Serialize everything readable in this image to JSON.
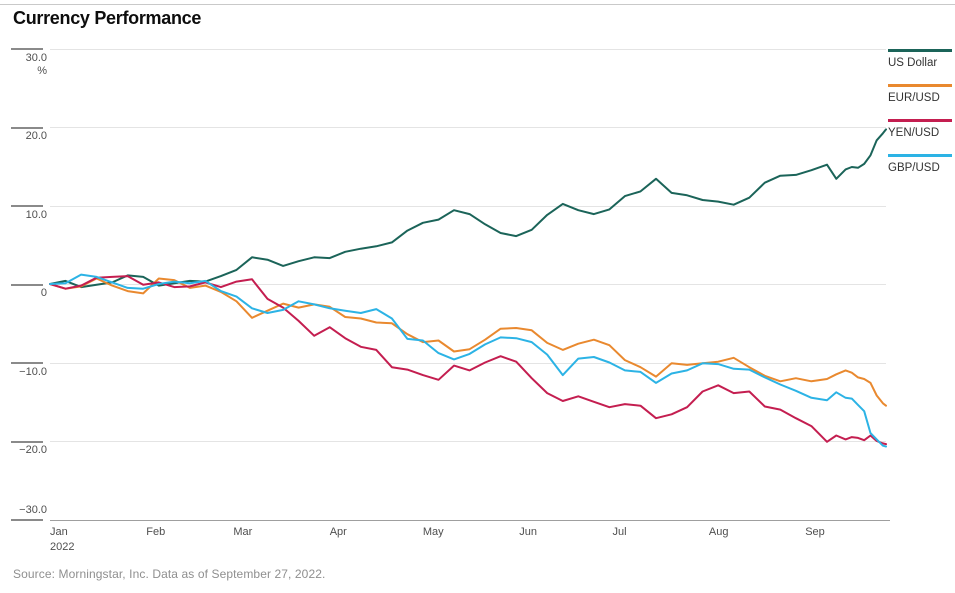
{
  "title": "Currency Performance",
  "source": "Source: Morningstar, Inc. Data as of September 27, 2022.",
  "colors": {
    "us_dollar": "#1b6459",
    "eur_usd": "#e9892f",
    "yen_usd": "#c41e50",
    "gbp_usd": "#2cb3e5",
    "gridline": "#e4e4e4",
    "axis": "#9f9f9f",
    "tick": "#8a8a8a"
  },
  "y_axis": {
    "unit": "%",
    "ticks": [
      {
        "value": 30,
        "label": "30.0"
      },
      {
        "value": 20,
        "label": "20.0"
      },
      {
        "value": 10,
        "label": "10.0"
      },
      {
        "value": 0,
        "label": "0"
      },
      {
        "value": -10,
        "label": "−10.0"
      },
      {
        "value": -20,
        "label": "−20.0"
      },
      {
        "value": -30,
        "label": "−30.0"
      }
    ]
  },
  "chart_data": {
    "type": "line",
    "title": "Currency Performance",
    "ylabel": "%",
    "ylim": [
      -30,
      30
    ],
    "grid": true,
    "legend_position": "right",
    "x_unit": "day of year 2022 (Jan 1 = 0, ends Sep 27)",
    "x": [
      0,
      5,
      10,
      15,
      20,
      25,
      30,
      35,
      40,
      45,
      50,
      55,
      60,
      65,
      70,
      75,
      80,
      85,
      90,
      95,
      100,
      105,
      110,
      115,
      120,
      125,
      130,
      135,
      140,
      145,
      150,
      155,
      160,
      165,
      170,
      175,
      180,
      185,
      190,
      195,
      200,
      205,
      210,
      215,
      220,
      225,
      230,
      235,
      240,
      245,
      250,
      253,
      256,
      258,
      260,
      262,
      264,
      266,
      268,
      269
    ],
    "x_ticks": [
      {
        "label": "Jan",
        "sublabel": "2022",
        "day": 0
      },
      {
        "label": "Feb",
        "day": 31
      },
      {
        "label": "Mar",
        "day": 59
      },
      {
        "label": "Apr",
        "day": 90
      },
      {
        "label": "May",
        "day": 120
      },
      {
        "label": "Jun",
        "day": 151
      },
      {
        "label": "Jul",
        "day": 181
      },
      {
        "label": "Aug",
        "day": 212
      },
      {
        "label": "Sep",
        "day": 243
      }
    ],
    "series": [
      {
        "name": "US Dollar",
        "legend_label": "US Dollar",
        "color": "#1b6459",
        "values": [
          0,
          0.4,
          -0.4,
          -0.1,
          0.2,
          1.1,
          0.9,
          -0.2,
          0.1,
          0.4,
          0.3,
          1.0,
          1.8,
          3.4,
          3.1,
          2.3,
          2.9,
          3.4,
          3.3,
          4.1,
          4.5,
          4.8,
          5.3,
          6.8,
          7.8,
          8.2,
          9.4,
          8.9,
          7.6,
          6.5,
          6.1,
          6.9,
          8.8,
          10.2,
          9.4,
          8.9,
          9.5,
          11.2,
          11.8,
          13.4,
          11.6,
          11.3,
          10.7,
          10.5,
          10.1,
          11.0,
          12.9,
          13.8,
          13.9,
          14.5,
          15.2,
          13.4,
          14.6,
          14.9,
          14.8,
          15.3,
          16.4,
          18.3,
          19.2,
          19.7
        ]
      },
      {
        "name": "EUR/USD",
        "legend_label": "EUR/USD",
        "color": "#e9892f",
        "values": [
          0,
          -0.6,
          -0.3,
          0.7,
          -0.2,
          -0.9,
          -1.2,
          0.7,
          0.5,
          -0.5,
          -0.2,
          -1.0,
          -2.2,
          -4.3,
          -3.4,
          -2.5,
          -3.0,
          -2.6,
          -2.9,
          -4.2,
          -4.4,
          -4.9,
          -5.0,
          -6.4,
          -7.4,
          -7.2,
          -8.6,
          -8.3,
          -7.1,
          -5.7,
          -5.6,
          -5.9,
          -7.5,
          -8.4,
          -7.6,
          -7.1,
          -7.8,
          -9.7,
          -10.6,
          -11.8,
          -10.1,
          -10.3,
          -10.1,
          -9.9,
          -9.4,
          -10.6,
          -11.7,
          -12.4,
          -12.0,
          -12.4,
          -12.1,
          -11.5,
          -11.0,
          -11.3,
          -11.9,
          -12.1,
          -12.6,
          -14.2,
          -15.2,
          -15.5
        ]
      },
      {
        "name": "YEN/USD",
        "legend_label": "YEN/USD",
        "color": "#c41e50",
        "values": [
          0,
          -0.6,
          -0.2,
          0.8,
          0.9,
          1.0,
          -0.1,
          0.2,
          -0.4,
          -0.3,
          0.2,
          -0.4,
          0.3,
          0.6,
          -1.9,
          -3.0,
          -4.7,
          -6.6,
          -5.5,
          -6.9,
          -8.0,
          -8.4,
          -10.6,
          -10.9,
          -11.6,
          -12.2,
          -10.4,
          -11.0,
          -10.0,
          -9.2,
          -9.9,
          -12.0,
          -13.9,
          -14.9,
          -14.3,
          -15.0,
          -15.7,
          -15.3,
          -15.5,
          -17.1,
          -16.6,
          -15.7,
          -13.7,
          -12.9,
          -13.9,
          -13.7,
          -15.6,
          -16.0,
          -17.1,
          -18.1,
          -20.1,
          -19.3,
          -19.8,
          -19.5,
          -19.6,
          -19.9,
          -19.3,
          -20.0,
          -20.3,
          -20.4
        ]
      },
      {
        "name": "GBP/USD",
        "legend_label": "GBP/USD",
        "color": "#2cb3e5",
        "values": [
          0,
          0.1,
          1.2,
          0.9,
          0.2,
          -0.5,
          -0.6,
          0.0,
          0.3,
          0.1,
          0.4,
          -0.9,
          -1.6,
          -3.1,
          -3.7,
          -3.3,
          -2.2,
          -2.6,
          -3.1,
          -3.4,
          -3.7,
          -3.2,
          -4.4,
          -7.0,
          -7.2,
          -8.8,
          -9.6,
          -8.9,
          -7.7,
          -6.8,
          -6.9,
          -7.4,
          -9.0,
          -11.6,
          -9.5,
          -9.3,
          -10.0,
          -11.0,
          -11.2,
          -12.6,
          -11.4,
          -11.0,
          -10.1,
          -10.2,
          -10.8,
          -10.9,
          -11.9,
          -12.8,
          -13.6,
          -14.5,
          -14.8,
          -13.8,
          -14.5,
          -14.6,
          -15.4,
          -16.2,
          -19.0,
          -19.8,
          -20.6,
          -20.7
        ]
      }
    ]
  }
}
